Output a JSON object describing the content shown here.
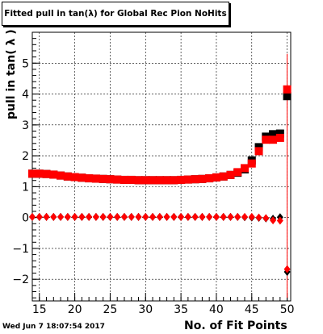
{
  "header": {
    "title": "Fitted pull in tan(λ) for Global Rec Pion NoHits"
  },
  "footer": {
    "timestamp": "Wed Jun  7 18:07:54 2017"
  },
  "chart_data": {
    "type": "scatter",
    "title": "Fitted pull in tan(λ) for Global Rec Pion NoHits",
    "xlabel": "No. of Fit Points",
    "ylabel": "pull in tan( λ )",
    "xlim": [
      14,
      50.5
    ],
    "ylim": [
      -2.7,
      6.0
    ],
    "grid": true,
    "x_ticks": [
      "15",
      "20",
      "25",
      "30",
      "35",
      "40",
      "45",
      "50"
    ],
    "y_ticks": [
      "−2",
      "−1",
      "0",
      "1",
      "2",
      "3",
      "4",
      "5"
    ],
    "x_tick_values": [
      15,
      20,
      25,
      30,
      35,
      40,
      45,
      50
    ],
    "y_tick_values": [
      -2,
      -1,
      0,
      1,
      2,
      3,
      4,
      5
    ],
    "series": [
      {
        "color": "#000000",
        "marker": "square",
        "x": [
          14,
          15,
          16,
          17,
          18,
          19,
          20,
          21,
          22,
          23,
          24,
          25,
          26,
          27,
          28,
          29,
          30,
          31,
          32,
          33,
          34,
          35,
          36,
          37,
          38,
          39,
          40,
          41,
          42,
          43,
          44,
          45,
          46,
          47,
          48,
          49,
          50
        ],
        "y": [
          1.42,
          1.42,
          1.41,
          1.39,
          1.36,
          1.33,
          1.31,
          1.29,
          1.27,
          1.26,
          1.25,
          1.24,
          1.23,
          1.22,
          1.22,
          1.21,
          1.21,
          1.21,
          1.21,
          1.21,
          1.21,
          1.22,
          1.23,
          1.24,
          1.25,
          1.27,
          1.3,
          1.33,
          1.38,
          1.45,
          1.56,
          1.85,
          2.28,
          2.62,
          2.7,
          2.72,
          3.93
        ]
      },
      {
        "color": "#ff0000",
        "marker": "square",
        "x": [
          14,
          15,
          16,
          17,
          18,
          19,
          20,
          21,
          22,
          23,
          24,
          25,
          26,
          27,
          28,
          29,
          30,
          31,
          32,
          33,
          34,
          35,
          36,
          37,
          38,
          39,
          40,
          41,
          42,
          43,
          44,
          45,
          46,
          47,
          48,
          49,
          50
        ],
        "y": [
          1.42,
          1.42,
          1.41,
          1.39,
          1.36,
          1.33,
          1.31,
          1.29,
          1.27,
          1.26,
          1.25,
          1.24,
          1.23,
          1.22,
          1.22,
          1.21,
          1.21,
          1.21,
          1.21,
          1.21,
          1.21,
          1.22,
          1.23,
          1.24,
          1.25,
          1.27,
          1.3,
          1.33,
          1.38,
          1.47,
          1.6,
          1.75,
          2.15,
          2.52,
          2.52,
          2.58,
          4.15
        ]
      },
      {
        "color": "#000000",
        "marker": "diamond",
        "x": [
          14,
          15,
          16,
          17,
          18,
          19,
          20,
          21,
          22,
          23,
          24,
          25,
          26,
          27,
          28,
          29,
          30,
          31,
          32,
          33,
          34,
          35,
          36,
          37,
          38,
          39,
          40,
          41,
          42,
          43,
          44,
          45,
          46,
          47,
          48,
          49,
          50
        ],
        "y": [
          0.02,
          0.02,
          0.02,
          0.02,
          0.02,
          0.02,
          0.02,
          0.02,
          0.02,
          0.02,
          0.02,
          0.02,
          0.02,
          0.02,
          0.02,
          0.02,
          0.02,
          0.02,
          0.02,
          0.02,
          0.02,
          0.02,
          0.02,
          0.02,
          0.02,
          0.02,
          0.02,
          0.02,
          0.02,
          0.02,
          0.01,
          0.0,
          -0.01,
          -0.03,
          -0.04,
          0.01,
          -1.76
        ]
      },
      {
        "color": "#ff0000",
        "marker": "diamond",
        "x": [
          14,
          15,
          16,
          17,
          18,
          19,
          20,
          21,
          22,
          23,
          24,
          25,
          26,
          27,
          28,
          29,
          30,
          31,
          32,
          33,
          34,
          35,
          36,
          37,
          38,
          39,
          40,
          41,
          42,
          43,
          44,
          45,
          46,
          47,
          48,
          49,
          50
        ],
        "y": [
          0.02,
          0.02,
          0.02,
          0.02,
          0.02,
          0.02,
          0.02,
          0.02,
          0.02,
          0.02,
          0.02,
          0.02,
          0.02,
          0.02,
          0.02,
          0.02,
          0.02,
          0.02,
          0.02,
          0.02,
          0.02,
          0.02,
          0.02,
          0.02,
          0.02,
          0.02,
          0.02,
          0.02,
          0.02,
          0.02,
          0.02,
          0.02,
          0.0,
          -0.02,
          -0.09,
          -0.1,
          -1.67
        ]
      }
    ],
    "last_point_error": {
      "x": 50,
      "upper": 5.3,
      "lower": -2.6
    }
  }
}
